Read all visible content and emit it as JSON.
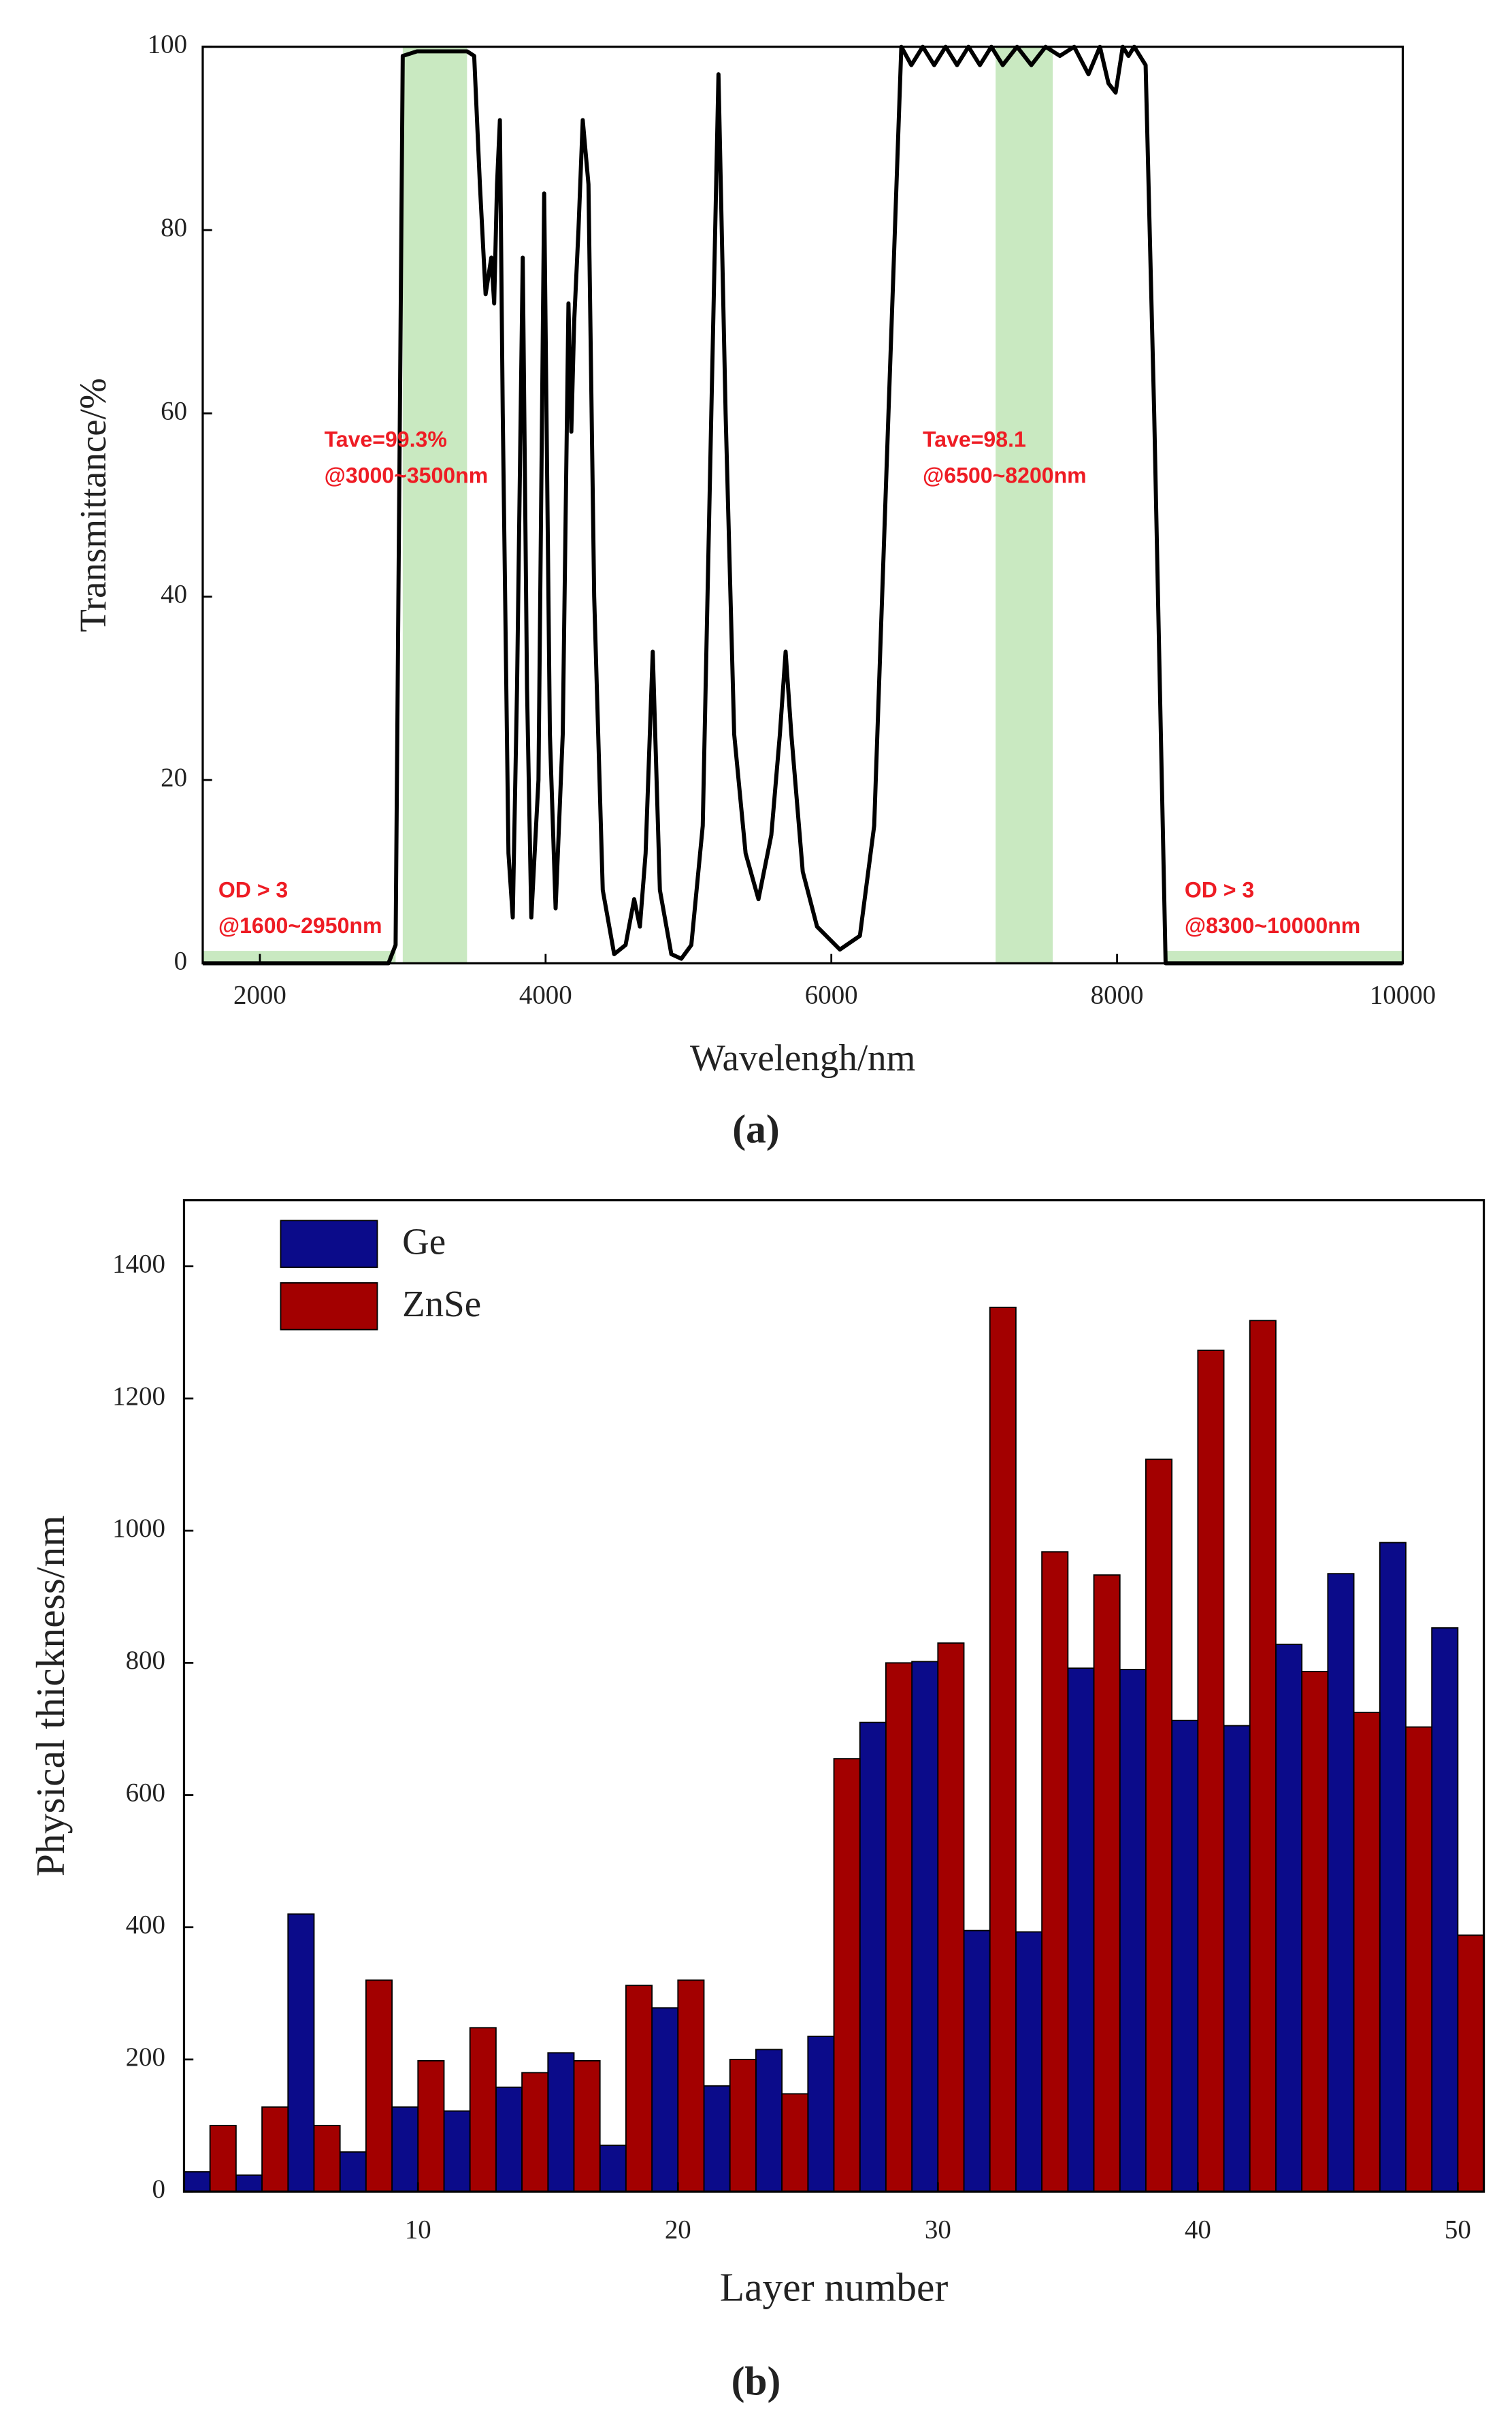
{
  "chart_data": [
    {
      "type": "line",
      "caption": "(a)",
      "xlabel": "Wavelengh/nm",
      "ylabel": "Transmittance/%",
      "xlim": [
        1600,
        10000
      ],
      "ylim": [
        0,
        100
      ],
      "xticks": [
        2000,
        4000,
        6000,
        8000,
        10000
      ],
      "yticks": [
        0,
        20,
        40,
        60,
        80,
        100
      ],
      "grid": false,
      "bands": [
        {
          "x0": 3000,
          "x1": 3450
        },
        {
          "x0": 7150,
          "x1": 7550
        }
      ],
      "baselines": [
        {
          "x0": 1600,
          "x1": 2950
        },
        {
          "x0": 8350,
          "x1": 10000
        }
      ],
      "band_color": "#c9e9c1",
      "annotations": [
        {
          "lines": [
            "Tave=99.3%",
            "@3000~3500nm"
          ]
        },
        {
          "lines": [
            "Tave=98.1",
            "@6500~8200nm"
          ]
        },
        {
          "lines": [
            "OD > 3",
            "@1600~2950nm"
          ]
        },
        {
          "lines": [
            "OD > 3",
            "@8300~10000nm"
          ]
        }
      ],
      "x": [
        1600,
        2900,
        2950,
        2980,
        3000,
        3100,
        3200,
        3300,
        3400,
        3450,
        3500,
        3540,
        3580,
        3620,
        3640,
        3660,
        3680,
        3700,
        3740,
        3770,
        3800,
        3840,
        3870,
        3900,
        3950,
        3990,
        4030,
        4070,
        4120,
        4160,
        4180,
        4200,
        4230,
        4260,
        4300,
        4340,
        4400,
        4480,
        4560,
        4620,
        4660,
        4700,
        4750,
        4800,
        4880,
        4950,
        5020,
        5100,
        5160,
        5210,
        5260,
        5320,
        5400,
        5490,
        5580,
        5640,
        5680,
        5720,
        5800,
        5900,
        6060,
        6200,
        6300,
        6400,
        6490,
        6560,
        6640,
        6720,
        6800,
        6880,
        6960,
        7040,
        7120,
        7200,
        7300,
        7400,
        7500,
        7600,
        7700,
        7800,
        7880,
        7940,
        7990,
        8040,
        8080,
        8120,
        8200,
        8260,
        8340,
        10000
      ],
      "series": [
        {
          "color": "#000000",
          "values": [
            0,
            0,
            2,
            60,
            99,
            99.5,
            99.5,
            99.5,
            99.5,
            99.5,
            99,
            85,
            73,
            77,
            72,
            85,
            92,
            60,
            12,
            5,
            30,
            77,
            30,
            5,
            20,
            84,
            25,
            6,
            25,
            72,
            58,
            70,
            80,
            92,
            85,
            40,
            8,
            1,
            2,
            7,
            4,
            12,
            34,
            8,
            1,
            0.5,
            2,
            15,
            60,
            97,
            60,
            25,
            12,
            7,
            14,
            25,
            34,
            25,
            10,
            4,
            1.5,
            3,
            15,
            60,
            100,
            98,
            100,
            98,
            100,
            98,
            100,
            98,
            100,
            98,
            100,
            98,
            100,
            99,
            100,
            97,
            100,
            96,
            95,
            100,
            99,
            100,
            98,
            60,
            0,
            0
          ]
        }
      ]
    },
    {
      "type": "bar",
      "caption": "(b)",
      "xlabel": "Layer number",
      "ylabel": "Physical thickness/nm",
      "xlim": [
        1,
        51
      ],
      "ylim": [
        0,
        1500
      ],
      "xticks": [
        10,
        20,
        30,
        40,
        50
      ],
      "yticks": [
        0,
        200,
        400,
        600,
        800,
        1000,
        1200,
        1400
      ],
      "grid": false,
      "legend": "upper left",
      "series": [
        {
          "name": "Ge",
          "color": "#0b0b8a",
          "x": [
            1,
            3,
            5,
            7,
            9,
            11,
            13,
            15,
            17,
            19,
            21,
            23,
            25,
            27,
            29,
            31,
            33,
            35,
            37,
            39,
            41,
            43,
            45,
            47,
            49
          ],
          "values": [
            30,
            25,
            420,
            60,
            128,
            122,
            158,
            210,
            70,
            278,
            160,
            215,
            235,
            710,
            802,
            395,
            393,
            792,
            790,
            713,
            705,
            828,
            935,
            982,
            853
          ]
        },
        {
          "name": "ZnSe",
          "color": "#a30000",
          "x": [
            2,
            4,
            6,
            8,
            10,
            12,
            14,
            16,
            18,
            20,
            22,
            24,
            26,
            28,
            30,
            32,
            34,
            36,
            38,
            40,
            42,
            44,
            46,
            48,
            50
          ],
          "values": [
            100,
            128,
            100,
            320,
            198,
            248,
            180,
            198,
            312,
            320,
            200,
            148,
            655,
            800,
            830,
            1338,
            968,
            933,
            1108,
            1273,
            1318,
            787,
            725,
            703,
            388
          ]
        }
      ]
    }
  ]
}
